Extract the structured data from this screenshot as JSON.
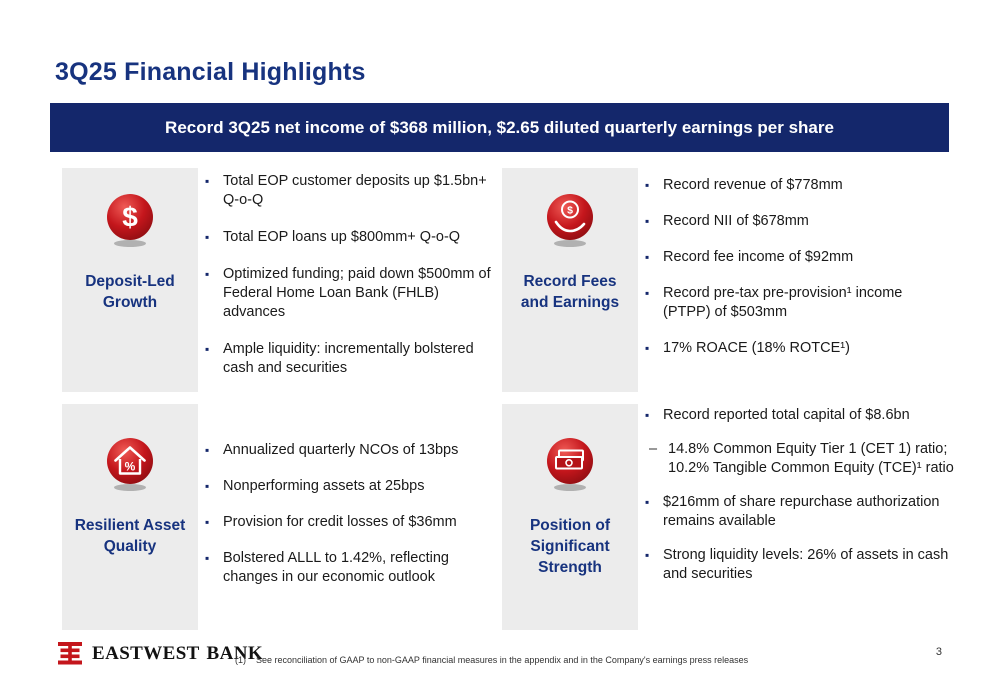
{
  "slide": {
    "title": "3Q25 Financial Highlights",
    "banner": "Record 3Q25 net income of $368 million, $2.65 diluted quarterly earnings per share"
  },
  "markers": {
    "square": "▪",
    "dash": "–"
  },
  "quadrants": [
    {
      "label": "Deposit-Led Growth",
      "icon": "dollar-circle-icon",
      "bullets": [
        {
          "marker": "square",
          "text": "Total EOP customer deposits up $1.5bn+ Q-o-Q"
        },
        {
          "marker": "square",
          "text": "Total EOP loans up $800mm+ Q-o-Q"
        },
        {
          "marker": "square",
          "text": "Optimized funding; paid down $500mm of Federal Home Loan Bank (FHLB) advances"
        },
        {
          "marker": "square",
          "text": "Ample liquidity: incrementally bolstered cash and securities"
        }
      ]
    },
    {
      "label": "Record Fees and Earnings",
      "icon": "hand-coin-icon",
      "bullets": [
        {
          "marker": "square",
          "text": "Record revenue of $778mm"
        },
        {
          "marker": "square",
          "text": "Record NII of $678mm"
        },
        {
          "marker": "square",
          "text": "Record fee income of $92mm"
        },
        {
          "marker": "square",
          "text": "Record pre-tax pre-provision¹ income (PTPP) of $503mm"
        },
        {
          "marker": "square",
          "text": "17% ROACE (18% ROTCE¹)"
        }
      ]
    },
    {
      "label": "Resilient Asset Quality",
      "icon": "house-percent-icon",
      "bullets": [
        {
          "marker": "square",
          "text": "Annualized quarterly NCOs of 13bps"
        },
        {
          "marker": "square",
          "text": "Nonperforming assets at 25bps"
        },
        {
          "marker": "square",
          "text": "Provision for credit losses of $36mm"
        },
        {
          "marker": "square",
          "text": "Bolstered ALLL to 1.42%, reflecting changes in our economic outlook"
        }
      ]
    },
    {
      "label": "Position of Significant Strength",
      "icon": "banknotes-icon",
      "bullets": [
        {
          "marker": "square",
          "text": "Record reported total capital of $8.6bn"
        },
        {
          "marker": "dash",
          "text": "14.8% Common Equity Tier 1 (CET 1) ratio; 10.2% Tangible Common Equity (TCE)¹ ratio"
        },
        {
          "marker": "square",
          "text": "$216mm of share repurchase authorization remains available"
        },
        {
          "marker": "square",
          "text": "Strong liquidity levels: 26% of assets in cash and securities"
        }
      ]
    }
  ],
  "footer": {
    "logo_text": "EASTWEST BANK",
    "footnote_marker": "(1)",
    "footnote_text": "See reconciliation of GAAP to non-GAAP financial measures in the appendix and in the Company's earnings press releases",
    "page_number": "3"
  },
  "colors": {
    "navy": "#14276b",
    "title_blue": "#17337f",
    "icon_red": "#c4161c",
    "panel_gray": "#ececec"
  }
}
